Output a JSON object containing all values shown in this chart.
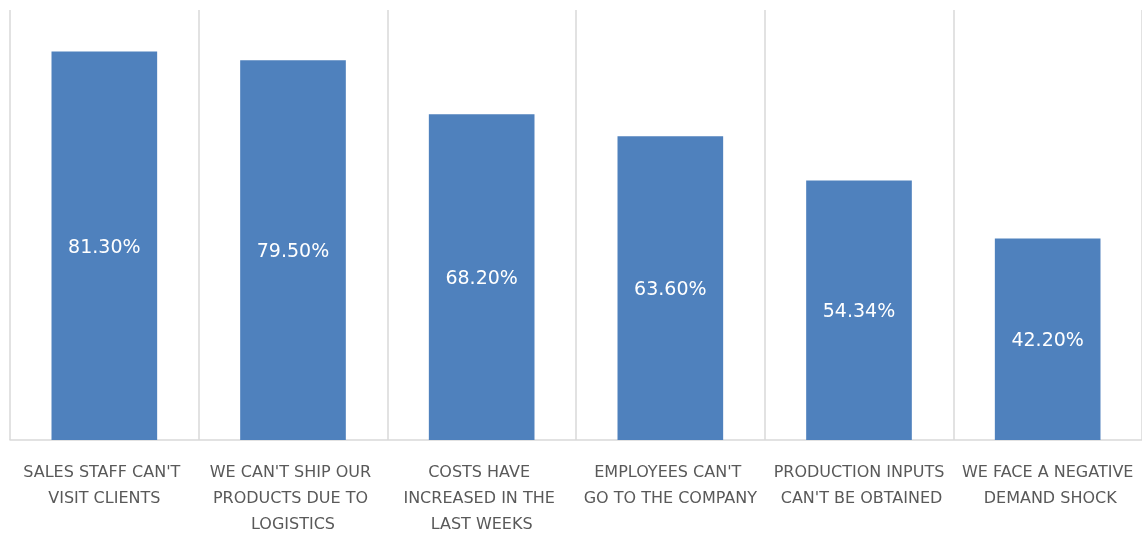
{
  "chart_data": {
    "type": "bar",
    "categories": [
      "SALES STAFF CAN'T VISIT CLIENTS",
      "WE CAN'T SHIP OUR PRODUCTS DUE TO LOGISTICS",
      "COSTS HAVE INCREASED IN THE LAST WEEKS",
      "EMPLOYEES CAN'T GO TO THE COMPANY",
      "PRODUCTION INPUTS CAN'T BE OBTAINED",
      "WE FACE A NEGATIVE DEMAND SHOCK"
    ],
    "values": [
      81.3,
      79.5,
      68.2,
      63.6,
      54.34,
      42.2
    ],
    "value_labels": [
      "81.30%",
      "79.50%",
      "68.20%",
      "63.60%",
      "54.34%",
      "42.20%"
    ],
    "color": "#4f81bd",
    "ylim": [
      0,
      90
    ],
    "tick_labels": "x",
    "grid": "x"
  }
}
